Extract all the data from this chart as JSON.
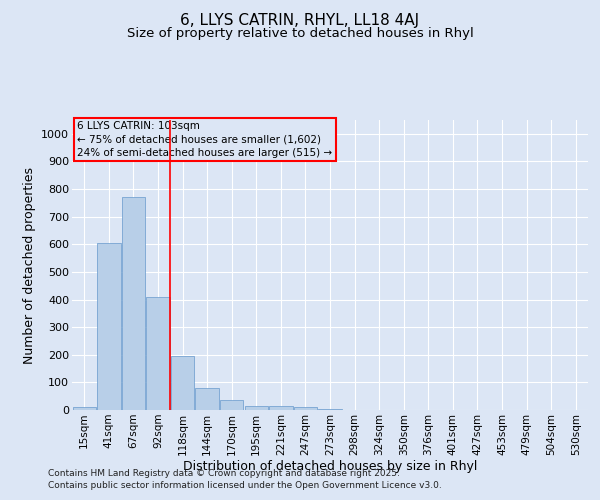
{
  "title": "6, LLYS CATRIN, RHYL, LL18 4AJ",
  "subtitle": "Size of property relative to detached houses in Rhyl",
  "xlabel": "Distribution of detached houses by size in Rhyl",
  "ylabel": "Number of detached properties",
  "categories": [
    "15sqm",
    "41sqm",
    "67sqm",
    "92sqm",
    "118sqm",
    "144sqm",
    "170sqm",
    "195sqm",
    "221sqm",
    "247sqm",
    "273sqm",
    "298sqm",
    "324sqm",
    "350sqm",
    "376sqm",
    "401sqm",
    "427sqm",
    "453sqm",
    "479sqm",
    "504sqm",
    "530sqm"
  ],
  "values": [
    10,
    605,
    770,
    410,
    195,
    78,
    38,
    15,
    15,
    10,
    5,
    0,
    0,
    0,
    0,
    0,
    0,
    0,
    0,
    0,
    0
  ],
  "bar_color": "#b8cfe8",
  "bar_edge_color": "#6699cc",
  "red_line_x": 3.5,
  "annotation_title": "6 LLYS CATRIN: 103sqm",
  "annotation_line2": "← 75% of detached houses are smaller (1,602)",
  "annotation_line3": "24% of semi-detached houses are larger (515) →",
  "ylim": [
    0,
    1050
  ],
  "background_color": "#dce6f5",
  "grid_color": "#ffffff",
  "title_fontsize": 11,
  "subtitle_fontsize": 9.5,
  "footer_line1": "Contains HM Land Registry data © Crown copyright and database right 2025.",
  "footer_line2": "Contains public sector information licensed under the Open Government Licence v3.0."
}
